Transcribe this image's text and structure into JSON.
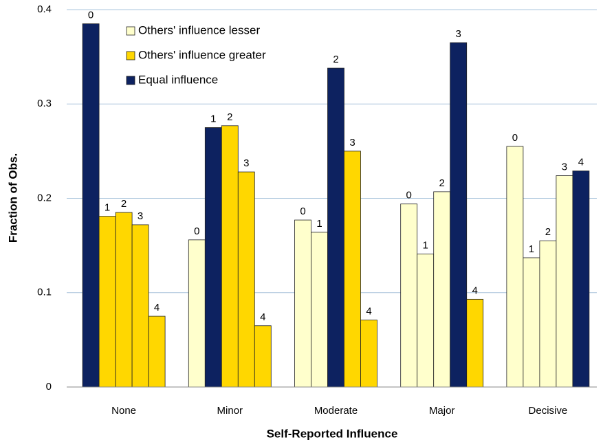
{
  "chart_data": {
    "type": "grouped_bar",
    "x_label": "Self-Reported Influence",
    "y_label": "Fraction of Obs.",
    "categories": [
      "None",
      "Minor",
      "Moderate",
      "Major",
      "Decisive"
    ],
    "bar_labels": [
      0,
      1,
      2,
      3,
      4
    ],
    "series": [
      {
        "name": "Others' influence lesser",
        "color": "#ffffcc"
      },
      {
        "name": "Others' influence greater",
        "color": "#ffd700"
      },
      {
        "name": "Equal influence",
        "color": "#0d2260"
      }
    ],
    "values": [
      [
        0.385,
        0.181,
        0.185,
        0.172,
        0.075
      ],
      [
        0.156,
        0.275,
        0.277,
        0.228,
        0.065
      ],
      [
        0.177,
        0.164,
        0.338,
        0.25,
        0.071
      ],
      [
        0.194,
        0.141,
        0.207,
        0.365,
        0.093
      ],
      [
        0.255,
        0.137,
        0.155,
        0.224,
        0.229
      ]
    ],
    "bar_series": [
      [
        2,
        1,
        1,
        1,
        1
      ],
      [
        0,
        2,
        1,
        1,
        1
      ],
      [
        0,
        0,
        2,
        1,
        1
      ],
      [
        0,
        0,
        0,
        2,
        1
      ],
      [
        0,
        0,
        0,
        0,
        2
      ]
    ],
    "ylim": [
      0,
      0.4
    ],
    "yticks": [
      0,
      0.1,
      0.2,
      0.3,
      0.4
    ],
    "grid": true,
    "legend": "top-left"
  }
}
